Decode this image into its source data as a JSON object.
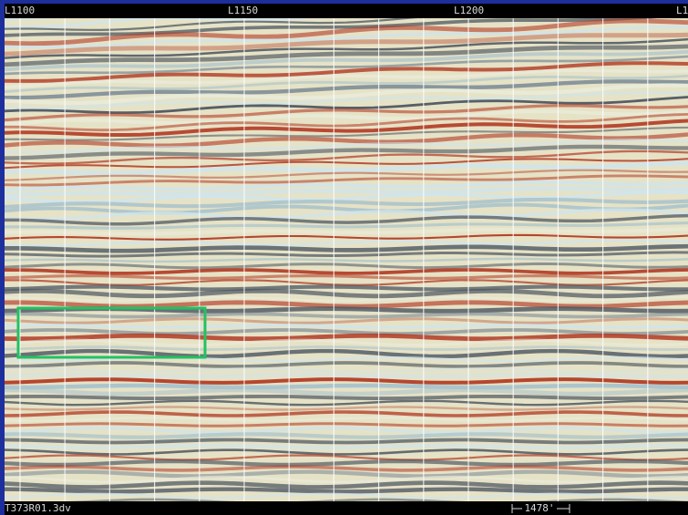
{
  "header": {
    "line_labels": [
      "L1100",
      "L1150",
      "L1200",
      "L1"
    ]
  },
  "footer": {
    "file_name": "T373R01.3dv",
    "scale_label": "1478'"
  }
}
